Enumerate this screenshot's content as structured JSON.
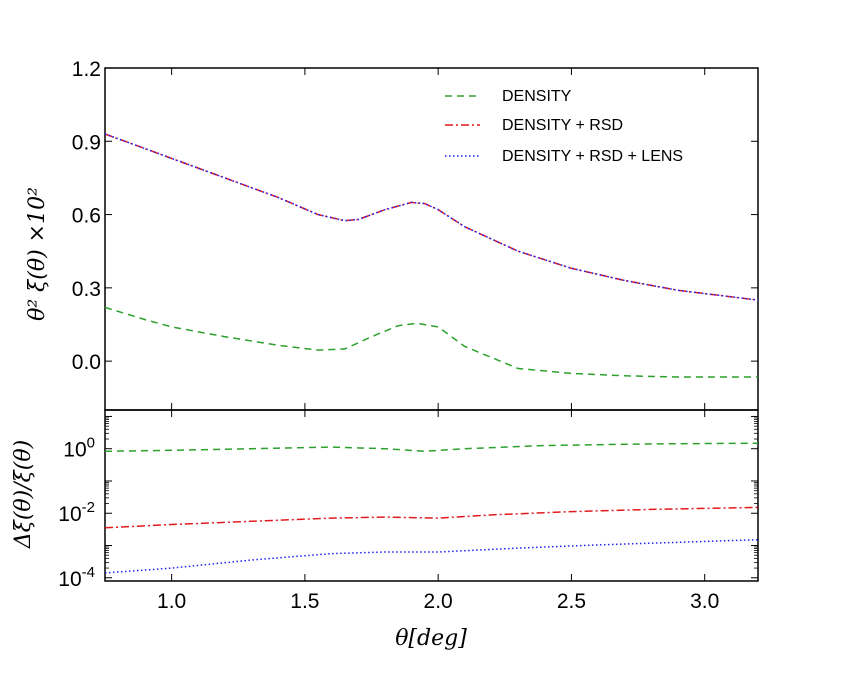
{
  "chart_data": {
    "type": "line",
    "xlabel": "θ[deg]",
    "xlim": [
      0.75,
      3.2
    ],
    "x_ticks": [
      "1.0",
      "1.5",
      "2.0",
      "2.5",
      "3.0"
    ],
    "x_tick_values": [
      1.0,
      1.5,
      2.0,
      2.5,
      3.0
    ],
    "colors": {
      "density": "#2ca02c",
      "rsd": "#e31a1c",
      "lens": "#1f1fff"
    },
    "top_panel": {
      "ylabel": "θ² ξ(θ) ×10²",
      "ylim": [
        -0.2,
        1.2
      ],
      "y_ticks": [
        "1.2",
        "0.9",
        "0.6",
        "0.3",
        "0.0"
      ],
      "y_tick_values": [
        1.2,
        0.9,
        0.6,
        0.3,
        0.0
      ],
      "legend": [
        "DENSITY",
        "DENSITY + RSD",
        "DENSITY + RSD + LENS"
      ],
      "legend_position": "top-right",
      "series": [
        {
          "name": "DENSITY",
          "style": "dashed",
          "color_key": "density",
          "x": [
            0.75,
            0.9,
            1.0,
            1.2,
            1.4,
            1.55,
            1.65,
            1.75,
            1.85,
            1.92,
            2.0,
            2.1,
            2.3,
            2.5,
            2.7,
            2.9,
            3.2
          ],
          "y": [
            0.22,
            0.17,
            0.14,
            0.1,
            0.065,
            0.045,
            0.05,
            0.1,
            0.145,
            0.155,
            0.14,
            0.06,
            -0.03,
            -0.05,
            -0.06,
            -0.065,
            -0.065
          ]
        },
        {
          "name": "DENSITY + RSD",
          "style": "dashdot",
          "color_key": "rsd",
          "x": [
            0.75,
            0.9,
            1.0,
            1.2,
            1.4,
            1.55,
            1.65,
            1.7,
            1.8,
            1.9,
            1.95,
            2.0,
            2.1,
            2.3,
            2.5,
            2.7,
            2.9,
            3.2
          ],
          "y": [
            0.93,
            0.87,
            0.83,
            0.75,
            0.67,
            0.6,
            0.575,
            0.58,
            0.62,
            0.65,
            0.645,
            0.62,
            0.55,
            0.45,
            0.38,
            0.33,
            0.29,
            0.25
          ]
        },
        {
          "name": "DENSITY + RSD + LENS",
          "style": "dotted",
          "color_key": "lens",
          "x": [
            0.75,
            0.9,
            1.0,
            1.2,
            1.4,
            1.55,
            1.65,
            1.7,
            1.8,
            1.9,
            1.95,
            2.0,
            2.1,
            2.3,
            2.5,
            2.7,
            2.9,
            3.2
          ],
          "y": [
            0.93,
            0.87,
            0.83,
            0.75,
            0.67,
            0.6,
            0.575,
            0.58,
            0.62,
            0.65,
            0.645,
            0.62,
            0.55,
            0.45,
            0.38,
            0.33,
            0.29,
            0.25
          ]
        }
      ]
    },
    "bottom_panel": {
      "ylabel": "Δξ(θ)/ξ(θ)",
      "yscale": "log",
      "ylim_log10": [
        -4.1,
        1.2
      ],
      "y_ticks": [
        {
          "base": "10",
          "exp": "0"
        },
        {
          "base": "10",
          "exp": "-2"
        },
        {
          "base": "10",
          "exp": "-4"
        }
      ],
      "y_tick_exponents": [
        0,
        -2,
        -4
      ],
      "series": [
        {
          "name": "DENSITY",
          "style": "dashed",
          "color_key": "density",
          "x": [
            0.75,
            1.0,
            1.3,
            1.6,
            1.8,
            1.95,
            2.1,
            2.4,
            2.8,
            3.2
          ],
          "log10_y": [
            -0.08,
            -0.05,
            0.0,
            0.05,
            0.0,
            -0.08,
            0.0,
            0.1,
            0.15,
            0.17
          ]
        },
        {
          "name": "DENSITY + RSD",
          "style": "dashdot",
          "color_key": "rsd",
          "x": [
            0.75,
            1.0,
            1.3,
            1.6,
            1.8,
            2.0,
            2.2,
            2.5,
            2.8,
            3.2
          ],
          "log10_y": [
            -2.45,
            -2.35,
            -2.25,
            -2.15,
            -2.12,
            -2.15,
            -2.05,
            -1.95,
            -1.88,
            -1.82
          ]
        },
        {
          "name": "DENSITY + RSD + LENS",
          "style": "dotted",
          "color_key": "lens",
          "x": [
            0.75,
            1.0,
            1.3,
            1.6,
            1.8,
            2.0,
            2.3,
            2.6,
            2.9,
            3.2
          ],
          "log10_y": [
            -3.85,
            -3.7,
            -3.45,
            -3.25,
            -3.2,
            -3.2,
            -3.08,
            -2.98,
            -2.9,
            -2.82
          ]
        }
      ]
    }
  }
}
